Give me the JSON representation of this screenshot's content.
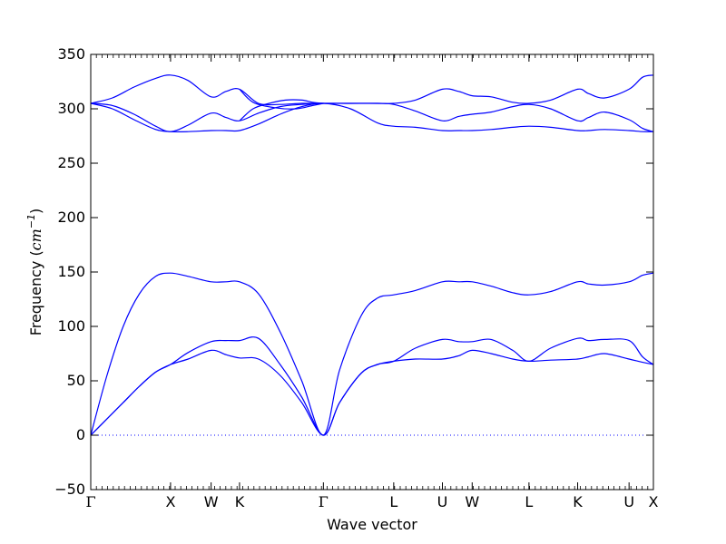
{
  "chart_data": {
    "type": "line",
    "xlabel": "Wave vector",
    "ylabel_main": "Frequency (",
    "ylabel_unit": "cm",
    "ylabel_exp": "−1",
    "ylabel_close": ")",
    "ylim": [
      -50,
      350
    ],
    "yticks": [
      -50,
      0,
      50,
      100,
      150,
      200,
      250,
      300,
      350
    ],
    "ytick_labels": [
      "−50",
      "0",
      "50",
      "100",
      "150",
      "200",
      "250",
      "300",
      "350"
    ],
    "xlim": [
      0,
      10.4
    ],
    "high_symmetry_points": [
      {
        "label": "Γ",
        "x": 0.0
      },
      {
        "label": "X",
        "x": 1.475
      },
      {
        "label": "W",
        "x": 2.225
      },
      {
        "label": "K",
        "x": 2.75
      },
      {
        "label": "Γ",
        "x": 4.3
      },
      {
        "label": "L",
        "x": 5.6
      },
      {
        "label": "U",
        "x": 6.5
      },
      {
        "label": "W",
        "x": 7.05
      },
      {
        "label": "L",
        "x": 8.1
      },
      {
        "label": "K",
        "x": 9.0
      },
      {
        "label": "U",
        "x": 9.95
      },
      {
        "label": "X",
        "x": 10.4
      }
    ],
    "zero_line": {
      "y": 0,
      "style": "dotted"
    },
    "line_color": "#0000ff",
    "series": [
      {
        "x": [
          0,
          0.3,
          0.6,
          0.9,
          1.2,
          1.475,
          1.8,
          2.225,
          2.5,
          2.75,
          3.1,
          3.5,
          3.9,
          4.3,
          4.6,
          5.0,
          5.3,
          5.6,
          6.0,
          6.5,
          6.8,
          7.05,
          7.4,
          7.8,
          8.1,
          8.5,
          9.0,
          9.2,
          9.5,
          9.95,
          10.2,
          10.4
        ],
        "y": [
          0,
          15,
          30,
          45,
          58,
          65,
          70,
          78,
          74,
          71,
          70,
          55,
          30,
          0,
          30,
          57,
          65,
          68,
          70,
          70,
          73,
          78,
          75,
          70,
          68,
          69,
          70,
          72,
          75,
          70,
          67,
          65
        ]
      },
      {
        "x": [
          0,
          0.3,
          0.6,
          0.9,
          1.2,
          1.475,
          1.8,
          2.225,
          2.5,
          2.75,
          3.1,
          3.5,
          3.9,
          4.3,
          4.6,
          5.0,
          5.3,
          5.6,
          6.0,
          6.5,
          6.8,
          7.05,
          7.4,
          7.8,
          8.1,
          8.5,
          9.0,
          9.2,
          9.5,
          9.95,
          10.2,
          10.4
        ],
        "y": [
          0,
          15,
          30,
          45,
          58,
          65,
          76,
          86,
          87,
          87,
          89,
          65,
          35,
          0,
          30,
          57,
          65,
          68,
          80,
          88,
          86,
          86,
          88,
          78,
          68,
          80,
          89,
          87,
          88,
          87,
          72,
          65
        ]
      },
      {
        "x": [
          0,
          0.3,
          0.6,
          0.9,
          1.2,
          1.475,
          1.8,
          2.225,
          2.5,
          2.75,
          3.1,
          3.5,
          3.9,
          4.3,
          4.6,
          5.0,
          5.3,
          5.6,
          6.0,
          6.5,
          6.8,
          7.05,
          7.4,
          7.8,
          8.1,
          8.5,
          9.0,
          9.2,
          9.5,
          9.95,
          10.2,
          10.4
        ],
        "y": [
          0,
          55,
          100,
          130,
          146,
          149,
          146,
          141,
          141,
          141,
          130,
          95,
          50,
          0,
          60,
          110,
          126,
          129,
          133,
          141,
          141,
          141,
          137,
          131,
          129,
          132,
          141,
          139,
          138,
          141,
          147,
          149
        ]
      },
      {
        "x": [
          0,
          0.4,
          0.8,
          1.2,
          1.475,
          1.8,
          2.225,
          2.5,
          2.75,
          3.1,
          3.5,
          3.9,
          4.3,
          4.8,
          5.3,
          5.6,
          6.0,
          6.5,
          6.8,
          7.05,
          7.4,
          7.8,
          8.1,
          8.5,
          9.0,
          9.2,
          9.5,
          9.95,
          10.2,
          10.4
        ],
        "y": [
          305,
          300,
          290,
          281,
          279,
          279,
          280,
          280,
          280,
          286,
          295,
          302,
          305,
          300,
          287,
          284,
          283,
          280,
          280,
          280,
          281,
          283,
          284,
          283,
          280,
          280,
          281,
          280,
          279,
          279
        ]
      },
      {
        "x": [
          0,
          0.4,
          0.8,
          1.2,
          1.475,
          1.8,
          2.225,
          2.5,
          2.75,
          3.1,
          3.5,
          3.9,
          4.3,
          4.8,
          5.3,
          5.6,
          6.0,
          6.5,
          6.8,
          7.05,
          7.4,
          7.8,
          8.1,
          8.5,
          9.0,
          9.2,
          9.5,
          9.95,
          10.2,
          10.4
        ],
        "y": [
          305,
          303,
          295,
          284,
          279,
          285,
          296,
          292,
          289,
          296,
          302,
          304,
          305,
          305,
          305,
          304,
          298,
          289,
          293,
          295,
          297,
          302,
          304,
          300,
          289,
          292,
          297,
          290,
          282,
          279
        ]
      },
      {
        "x": [
          0,
          0.4,
          0.8,
          1.2,
          1.475,
          1.8,
          2.225,
          2.5,
          2.75,
          3.1,
          3.5,
          3.9,
          4.3,
          4.8,
          5.3,
          5.6,
          6.0,
          6.5,
          6.8,
          7.05,
          7.4,
          7.8,
          8.1,
          8.5,
          9.0,
          9.2,
          9.5,
          9.95,
          10.2,
          10.4
        ],
        "y": [
          305,
          310,
          320,
          328,
          331,
          326,
          311,
          316,
          318,
          305,
          304,
          305,
          305,
          305,
          305,
          305,
          308,
          318,
          316,
          312,
          311,
          306,
          305,
          308,
          318,
          314,
          310,
          318,
          329,
          331
        ]
      },
      {
        "x": [
          2.75,
          3.0,
          3.3,
          3.6,
          3.9,
          4.1,
          4.3
        ],
        "y": [
          289,
          300,
          305,
          308,
          308,
          306,
          305
        ]
      },
      {
        "x": [
          2.75,
          3.0,
          3.4,
          3.8,
          4.1,
          4.3
        ],
        "y": [
          318,
          306,
          301,
          300,
          303,
          305
        ]
      }
    ]
  }
}
